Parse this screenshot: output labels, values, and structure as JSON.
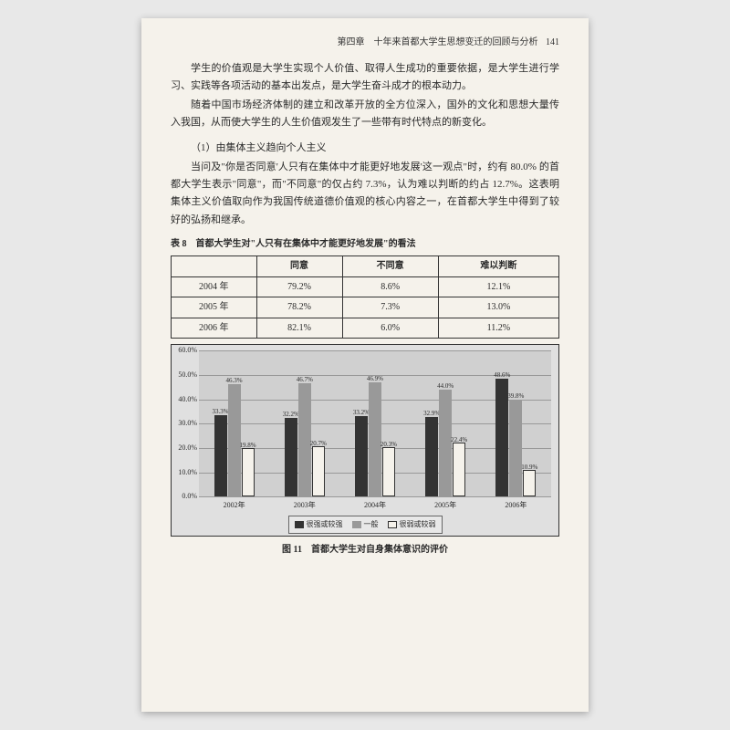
{
  "header": {
    "chapter": "第四章　十年来首都大学生思想变迁的回顾与分析",
    "page": "141"
  },
  "para1": "学生的价值观是大学生实现个人价值、取得人生成功的重要依据，是大学生进行学习、实践等各项活动的基本出发点，是大学生奋斗成才的根本动力。",
  "para2": "随着中国市场经济体制的建立和改革开放的全方位深入，国外的文化和思想大量传入我国，从而使大学生的人生价值观发生了一些带有时代特点的新变化。",
  "subhead": "（1）由集体主义趋向个人主义",
  "para3": "当问及\"你是否同意'人只有在集体中才能更好地发展'这一观点\"时，约有 80.0% 的首都大学生表示\"同意\"，而\"不同意\"的仅占约 7.3%，认为难以判断的约占 12.7%。这表明集体主义价值取向作为我国传统道德价值观的核心内容之一，在首都大学生中得到了较好的弘扬和继承。",
  "table": {
    "caption": "表 8　首都大学生对\"人只有在集体中才能更好地发展\"的看法",
    "columns": [
      "",
      "同意",
      "不同意",
      "难以判断"
    ],
    "rows": [
      [
        "2004 年",
        "79.2%",
        "8.6%",
        "12.1%"
      ],
      [
        "2005 年",
        "78.2%",
        "7.3%",
        "13.0%"
      ],
      [
        "2006 年",
        "82.1%",
        "6.0%",
        "11.2%"
      ]
    ]
  },
  "chart": {
    "type": "bar",
    "ymax": 60,
    "ytick_step": 10,
    "yticks": [
      "0.0%",
      "10.0%",
      "20.0%",
      "30.0%",
      "40.0%",
      "50.0%",
      "60.0%"
    ],
    "categories": [
      "2002年",
      "2003年",
      "2004年",
      "2005年",
      "2006年"
    ],
    "series": [
      {
        "name": "很强或较强",
        "color": "#333333",
        "values": [
          33.3,
          32.2,
          33.2,
          32.9,
          48.6
        ]
      },
      {
        "name": "一般",
        "color": "#999999",
        "values": [
          46.3,
          46.7,
          46.9,
          44.0,
          39.8
        ]
      },
      {
        "name": "很弱或较弱",
        "color": "#f5f2eb",
        "values": [
          19.8,
          20.7,
          20.3,
          22.4,
          10.9
        ]
      }
    ],
    "background_color": "#d0d0d0",
    "grid_color": "#999999",
    "caption": "图 11　首都大学生对自身集体意识的评价",
    "legend_labels": [
      "■很强或较强",
      "■一般",
      "□很弱或较弱"
    ]
  }
}
